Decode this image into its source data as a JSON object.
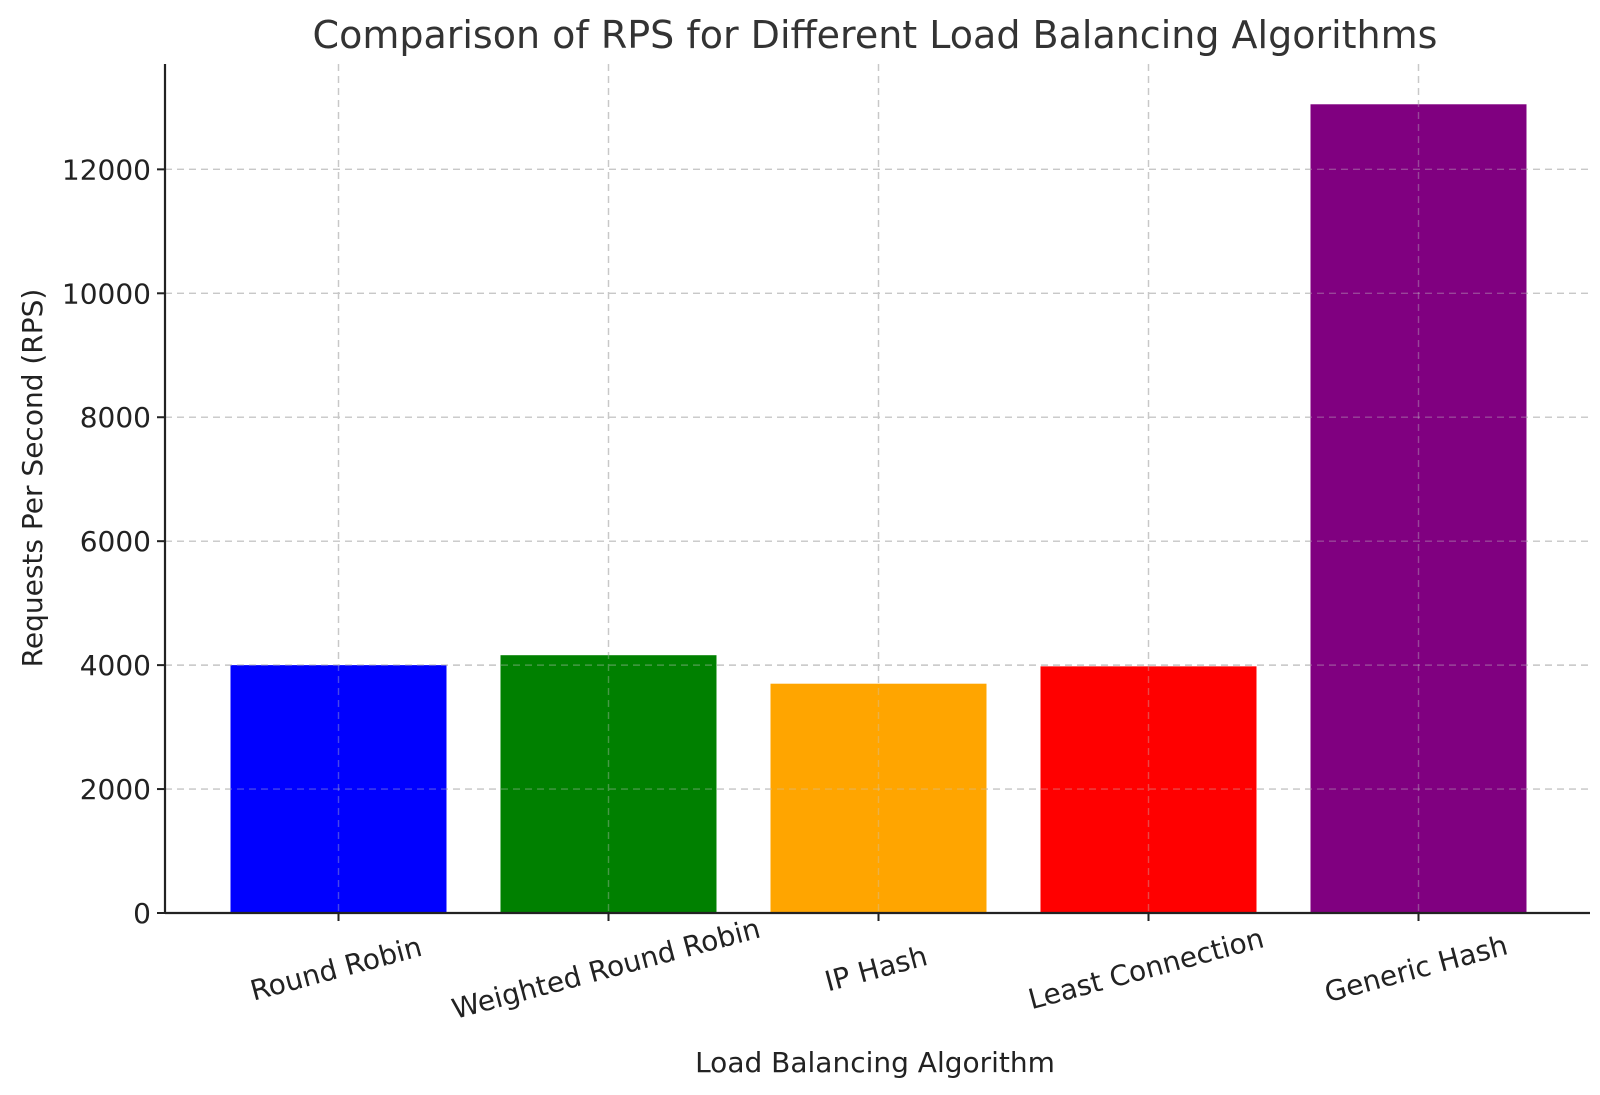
{
  "chart_data": {
    "type": "bar",
    "title": "Comparison of RPS for Different Load Balancing Algorithms",
    "xlabel": "Load Balancing Algorithm",
    "ylabel": "Requests Per Second (RPS)",
    "categories": [
      "Round Robin",
      "Weighted Round Robin",
      "IP Hash",
      "Least Connection",
      "Generic Hash"
    ],
    "values": [
      4000,
      4160,
      3700,
      3980,
      13050
    ],
    "colors": [
      "#0000ff",
      "#008000",
      "#ffa500",
      "#ff0000",
      "#800080"
    ],
    "yticks": [
      0,
      2000,
      4000,
      6000,
      8000,
      10000,
      12000
    ],
    "ylim": [
      0,
      13700
    ],
    "grid": true,
    "legend": "none"
  }
}
